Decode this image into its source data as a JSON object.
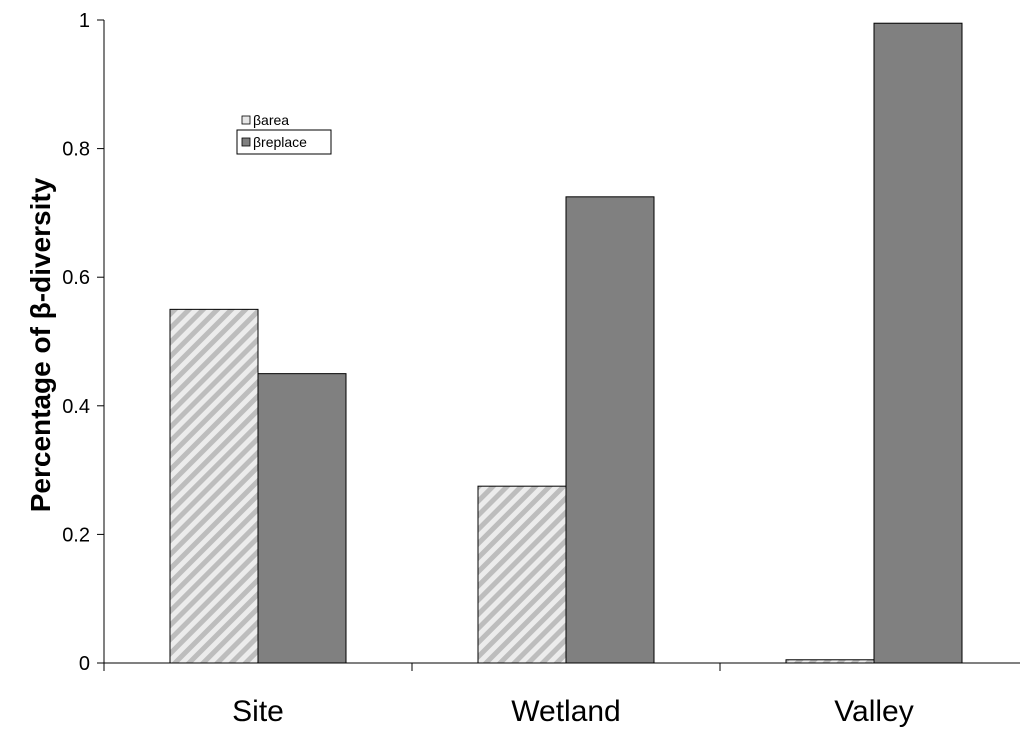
{
  "chart_data": {
    "type": "bar",
    "title": "",
    "xlabel": "",
    "ylabel": "Percentage of β-diversity",
    "categories": [
      "Site",
      "Wetland",
      "Valley"
    ],
    "ylim": [
      0,
      1
    ],
    "yticks": [
      "0",
      "0.2",
      "0.4",
      "0.6",
      "0.8",
      "1"
    ],
    "grid": false,
    "legend_position": "top-left",
    "series": [
      {
        "name": "βarea",
        "values": [
          0.55,
          0.275,
          0.005
        ],
        "fill": "#d9d9d9",
        "pattern": "diagonal-hatch",
        "hatch_color": "#bfbfbf"
      },
      {
        "name": "βreplace",
        "values": [
          0.45,
          0.725,
          0.995
        ],
        "fill": "#808080"
      }
    ]
  }
}
